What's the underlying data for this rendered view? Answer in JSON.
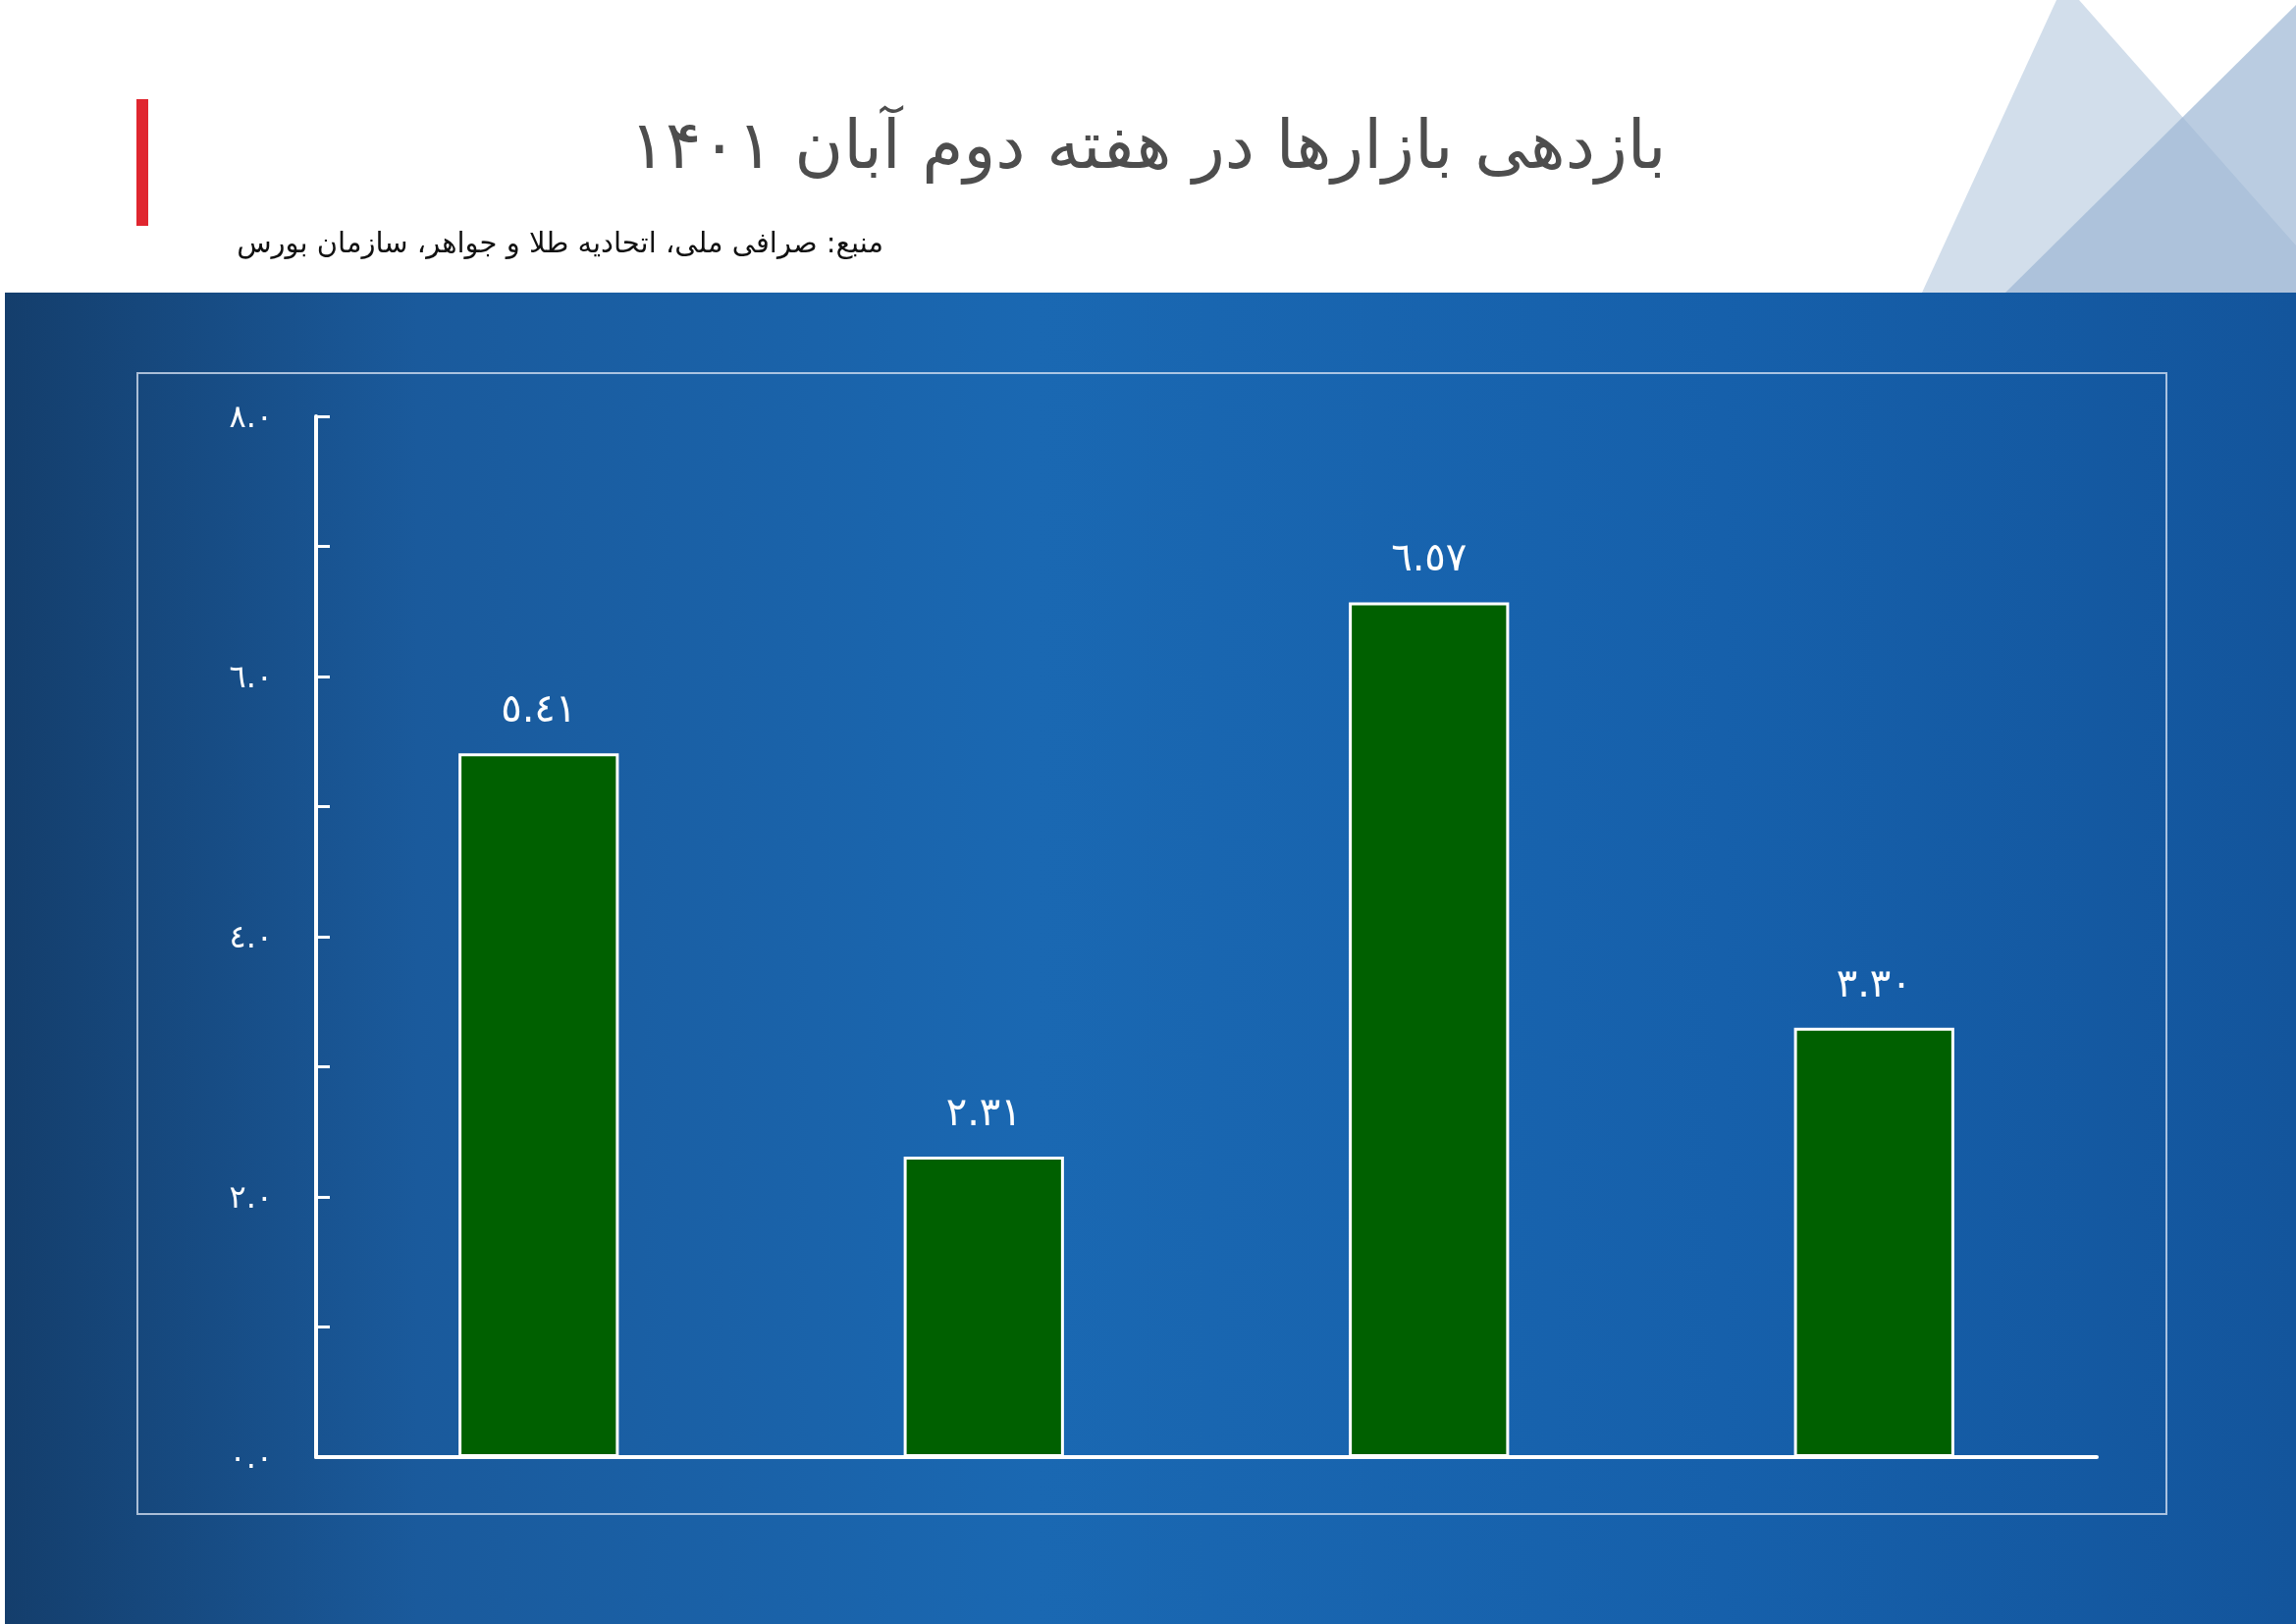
{
  "chart_data": {
    "type": "bar",
    "title": "بازدهی بازارها در هفته دوم آبان ۱۴۰۱",
    "annotations": [
      "منبع: صرافی ملی، اتحادیه طلا و جواهر، سازمان بورس"
    ],
    "categories": [
      null,
      null,
      null,
      null
    ],
    "values": [
      5.41,
      2.31,
      6.57,
      3.3
    ],
    "color": "#006000",
    "value_labels": [
      "٥.٤١",
      "٢.٣١",
      "٦.٥٧",
      "٣.٣٠"
    ],
    "ylim": [
      0,
      8
    ],
    "yticks": [
      {
        "value": 0,
        "label": "٠.٠"
      },
      {
        "value": 1,
        "label": null
      },
      {
        "value": 2,
        "label": "٢.٠"
      },
      {
        "value": 3,
        "label": null
      },
      {
        "value": 4,
        "label": "٤.٠"
      },
      {
        "value": 5,
        "label": null
      },
      {
        "value": 6,
        "label": "٦.٠"
      },
      {
        "value": 7,
        "label": null
      },
      {
        "value": 8,
        "label": "٨.٠"
      }
    ]
  }
}
